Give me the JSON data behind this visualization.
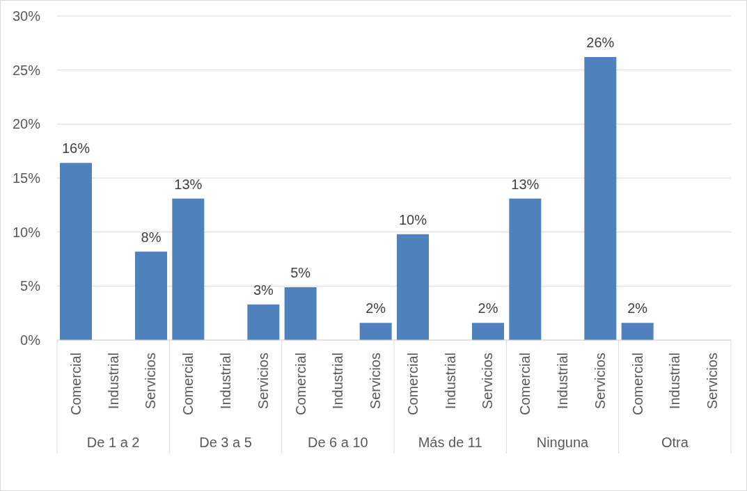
{
  "chart_data": {
    "type": "bar",
    "categories": [
      "De 1 a 2",
      "De 3 a 5",
      "De 6 a 10",
      "Más de 11",
      "Ninguna",
      "Otra"
    ],
    "series": [
      {
        "name": "Comercial",
        "color": "#4f81bd",
        "values": [
          16.4,
          13.1,
          4.9,
          9.8,
          13.1,
          1.6
        ],
        "value_labels": [
          "16%",
          "13%",
          "5%",
          "10%",
          "13%",
          "2%"
        ]
      },
      {
        "name": "Industrial",
        "values": [
          null,
          null,
          null,
          null,
          null,
          null
        ],
        "value_labels": [
          null,
          null,
          null,
          null,
          null,
          null
        ]
      },
      {
        "name": "Servicios",
        "color": "#4f81bd",
        "values": [
          8.2,
          3.3,
          1.6,
          1.6,
          26.2,
          null
        ],
        "value_labels": [
          "8%",
          "3%",
          "2%",
          "2%",
          "26%",
          null
        ]
      }
    ],
    "ylim": [
      0,
      30
    ],
    "yticks": [
      {
        "value": 0,
        "label": "0%"
      },
      {
        "value": 5,
        "label": "5%"
      },
      {
        "value": 10,
        "label": "10%"
      },
      {
        "value": 15,
        "label": "15%"
      },
      {
        "value": 20,
        "label": "20%"
      },
      {
        "value": 25,
        "label": "25%"
      },
      {
        "value": 30,
        "label": "30%"
      }
    ],
    "grid": "y",
    "legend": false
  }
}
